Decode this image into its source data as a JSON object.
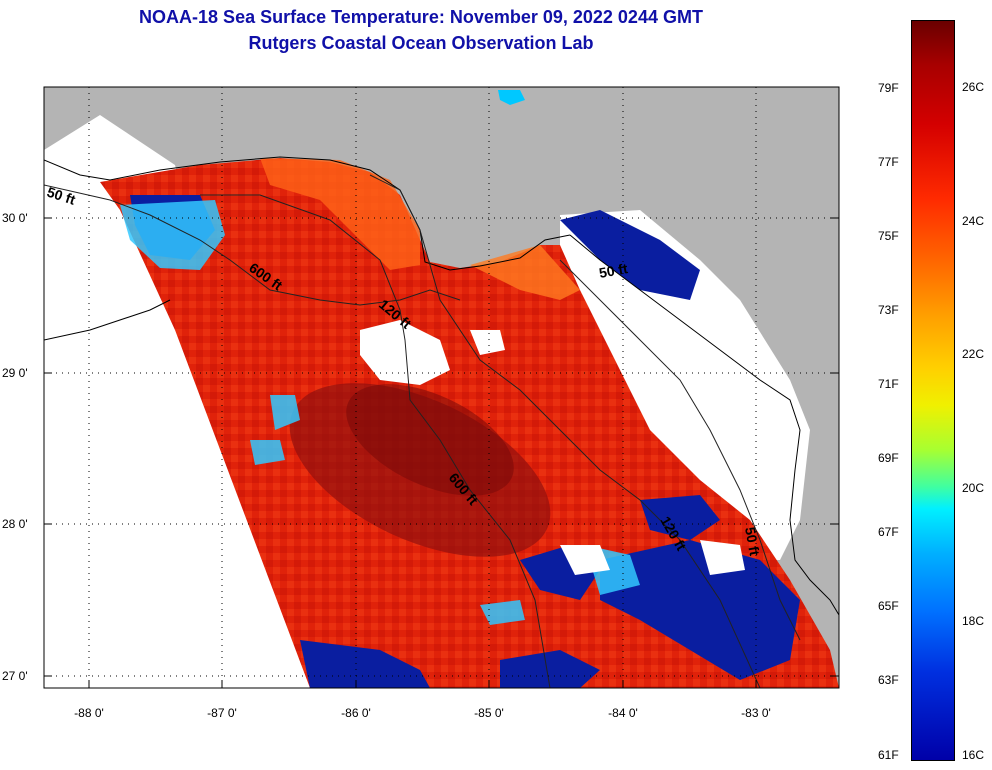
{
  "title": {
    "line1": "NOAA-18 Sea Surface Temperature:  November 09, 2022 0244 GMT",
    "line2": "Rutgers Coastal Ocean Observation Lab"
  },
  "map": {
    "lat_labels": [
      "30 0'",
      "29 0'",
      "28 0'",
      "27 0'"
    ],
    "lon_labels": [
      "-88 0'",
      "-87 0'",
      "-86 0'",
      "-85 0'",
      "-84 0'",
      "-83 0'"
    ],
    "contour_labels": [
      "50 ft",
      "600 ft",
      "120 ft",
      "600 ft",
      "120 ft",
      "50 ft",
      "50 ft"
    ],
    "colors": {
      "land": "#b4b4b4",
      "no_data": "#ffffff",
      "warm": "#e01e00",
      "hot": "#8c0f0f",
      "cool": "#0a1ea0"
    }
  },
  "colorbar": {
    "fahrenheit": [
      "79F",
      "77F",
      "75F",
      "73F",
      "71F",
      "69F",
      "67F",
      "65F",
      "63F",
      "61F"
    ],
    "celsius": [
      "26C",
      "24C",
      "22C",
      "20C",
      "18C",
      "16C"
    ]
  }
}
